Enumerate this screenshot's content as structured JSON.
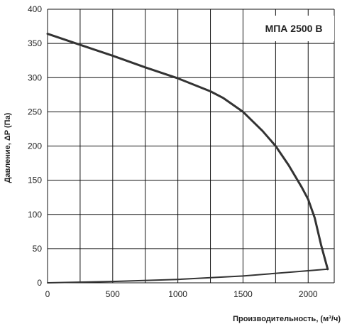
{
  "chart_data": {
    "type": "line",
    "title": "МПА 2500 В",
    "xlabel": "Производительность, (м³/ч)",
    "ylabel": "Давление, ΔP (Па)",
    "xlim": [
      0,
      2200
    ],
    "ylim": [
      0,
      400
    ],
    "x_ticks": [
      0,
      500,
      1000,
      1500,
      2000
    ],
    "y_ticks": [
      0,
      50,
      100,
      150,
      200,
      250,
      300,
      350,
      400
    ],
    "x_grid": [
      0,
      250,
      500,
      750,
      1000,
      1250,
      1500,
      1750,
      2000,
      2200
    ],
    "grid": true,
    "series": [
      {
        "x": [
          0,
          250,
          500,
          750,
          1000,
          1250,
          1350,
          1500,
          1650,
          1750,
          1850,
          1950,
          2000,
          2050,
          2100,
          2150
        ],
        "y": [
          364,
          348,
          332,
          315,
          299,
          280,
          270,
          250,
          222,
          200,
          172,
          140,
          122,
          95,
          55,
          20
        ]
      },
      {
        "x": [
          0,
          500,
          1000,
          1500,
          2150
        ],
        "y": [
          0,
          2,
          5,
          10,
          20
        ]
      }
    ],
    "colors": {
      "line": "#333333",
      "grid": "#111111"
    }
  }
}
